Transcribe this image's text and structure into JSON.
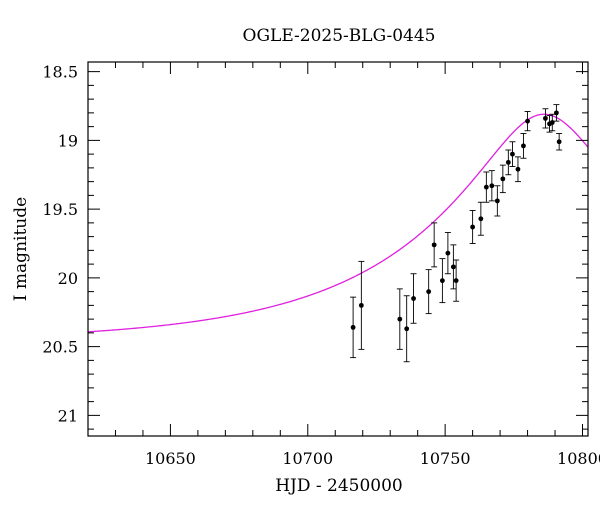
{
  "chart_data": {
    "type": "scatter",
    "title": "OGLE-2025-BLG-0445",
    "xlabel": "HJD - 2450000",
    "ylabel": "I magnitude",
    "xlim": [
      10620,
      10802
    ],
    "ylim": [
      21.15,
      18.43
    ],
    "y_inverted": true,
    "grid": false,
    "x_major_ticks": [
      10650,
      10700,
      10750,
      10800
    ],
    "x_tick_labels": [
      "10650",
      "10700",
      "10750",
      "10800"
    ],
    "x_minor_step": 10,
    "y_major_ticks": [
      18.5,
      19,
      19.5,
      20,
      20.5,
      21
    ],
    "y_tick_labels": [
      "18.5",
      "19",
      "19.5",
      "20",
      "20.5",
      "21"
    ],
    "y_minor_step": 0.1,
    "model_color": "#e020e0",
    "point_color": "#000000",
    "model": {
      "t0": 10786,
      "tE": 85,
      "u0": 0.25,
      "base_mag": 20.47,
      "peak_mag": 18.81
    },
    "observations": [
      {
        "x": 10716.5,
        "y": 20.36,
        "err": 0.22
      },
      {
        "x": 10719.5,
        "y": 20.2,
        "err": 0.32
      },
      {
        "x": 10733.5,
        "y": 20.3,
        "err": 0.22
      },
      {
        "x": 10736.0,
        "y": 20.37,
        "err": 0.24
      },
      {
        "x": 10738.5,
        "y": 20.15,
        "err": 0.18
      },
      {
        "x": 10744.0,
        "y": 20.1,
        "err": 0.16
      },
      {
        "x": 10746.0,
        "y": 19.76,
        "err": 0.16
      },
      {
        "x": 10749.0,
        "y": 20.02,
        "err": 0.16
      },
      {
        "x": 10751.0,
        "y": 19.82,
        "err": 0.15
      },
      {
        "x": 10753.0,
        "y": 19.92,
        "err": 0.16
      },
      {
        "x": 10754.0,
        "y": 20.02,
        "err": 0.15
      },
      {
        "x": 10760.0,
        "y": 19.63,
        "err": 0.12
      },
      {
        "x": 10763.0,
        "y": 19.57,
        "err": 0.12
      },
      {
        "x": 10765.0,
        "y": 19.34,
        "err": 0.11
      },
      {
        "x": 10767.0,
        "y": 19.33,
        "err": 0.11
      },
      {
        "x": 10769.0,
        "y": 19.44,
        "err": 0.11
      },
      {
        "x": 10771.0,
        "y": 19.28,
        "err": 0.1
      },
      {
        "x": 10773.0,
        "y": 19.16,
        "err": 0.09
      },
      {
        "x": 10774.5,
        "y": 19.1,
        "err": 0.09
      },
      {
        "x": 10776.5,
        "y": 19.21,
        "err": 0.09
      },
      {
        "x": 10778.5,
        "y": 19.04,
        "err": 0.09
      },
      {
        "x": 10780.0,
        "y": 18.86,
        "err": 0.07
      },
      {
        "x": 10786.5,
        "y": 18.84,
        "err": 0.07
      },
      {
        "x": 10788.0,
        "y": 18.88,
        "err": 0.06
      },
      {
        "x": 10789.0,
        "y": 18.87,
        "err": 0.06
      },
      {
        "x": 10790.5,
        "y": 18.8,
        "err": 0.06
      },
      {
        "x": 10791.5,
        "y": 19.01,
        "err": 0.06
      }
    ]
  }
}
